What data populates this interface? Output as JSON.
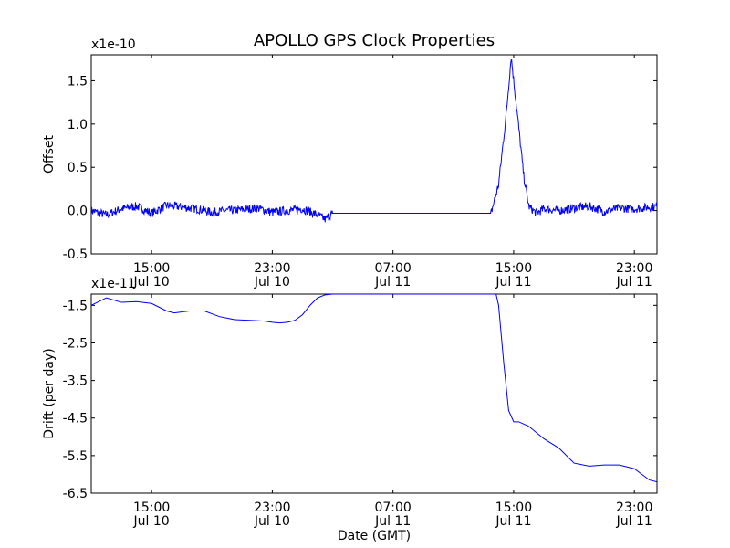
{
  "chart_data": [
    {
      "type": "line",
      "title": "APOLLO GPS Clock Properties",
      "offset_label": "x1e-10",
      "ylabel": "Offset",
      "xlabel": "",
      "ylim": [
        -0.5,
        1.8
      ],
      "yticks": [
        {
          "value": -0.5,
          "label": "-0.5"
        },
        {
          "value": 0.0,
          "label": "0.0"
        },
        {
          "value": 0.5,
          "label": "0.5"
        },
        {
          "value": 1.0,
          "label": "1.0"
        },
        {
          "value": 1.5,
          "label": "1.5"
        }
      ],
      "xlim": [
        "2012-07-10 11:00",
        "2012-07-12 00:30"
      ],
      "xticks": [
        {
          "value": "2012-07-10 15:00",
          "time": "15:00",
          "date": "Jul 10"
        },
        {
          "value": "2012-07-10 23:00",
          "time": "23:00",
          "date": "Jul 10"
        },
        {
          "value": "2012-07-11 07:00",
          "time": "07:00",
          "date": "Jul 11"
        },
        {
          "value": "2012-07-11 15:00",
          "time": "15:00",
          "date": "Jul 11"
        },
        {
          "value": "2012-07-11 23:00",
          "time": "23:00",
          "date": "Jul 11"
        }
      ],
      "series": [
        {
          "color": "#0000ff",
          "x": [
            "2012-07-10 11:00",
            "2012-07-10 12:00",
            "2012-07-10 13:00",
            "2012-07-10 14:00",
            "2012-07-10 15:00",
            "2012-07-10 16:00",
            "2012-07-10 17:00",
            "2012-07-10 18:00",
            "2012-07-10 19:00",
            "2012-07-10 20:00",
            "2012-07-10 21:00",
            "2012-07-10 22:00",
            "2012-07-10 23:00",
            "2012-07-11 00:00",
            "2012-07-11 01:00",
            "2012-07-11 02:00",
            "2012-07-11 02:30",
            "2012-07-11 03:00",
            "2012-07-11 06:00",
            "2012-07-11 10:00",
            "2012-07-11 13:30",
            "2012-07-11 14:00",
            "2012-07-11 14:30",
            "2012-07-11 14:50",
            "2012-07-11 15:15",
            "2012-07-11 15:40",
            "2012-07-11 16:00",
            "2012-07-11 16:30",
            "2012-07-11 17:00",
            "2012-07-11 18:00",
            "2012-07-11 19:00",
            "2012-07-11 20:00",
            "2012-07-11 21:00",
            "2012-07-11 22:00",
            "2012-07-11 23:00",
            "2012-07-12 00:00",
            "2012-07-12 00:30"
          ],
          "y": [
            0.0,
            -0.05,
            0.02,
            0.05,
            -0.03,
            0.06,
            0.04,
            0.02,
            -0.02,
            0.0,
            0.01,
            0.03,
            -0.02,
            0.0,
            0.02,
            -0.05,
            -0.1,
            -0.03,
            -0.03,
            -0.03,
            -0.03,
            0.3,
            1.1,
            1.78,
            1.1,
            0.4,
            0.05,
            -0.03,
            0.02,
            0.0,
            0.03,
            0.05,
            -0.01,
            0.03,
            0.02,
            0.04,
            0.05
          ],
          "noise": 0.05
        }
      ]
    },
    {
      "type": "line",
      "title": "",
      "offset_label": "x1e-11",
      "ylabel": "Drift (per day)",
      "xlabel": "Date (GMT)",
      "ylim": [
        -6.5,
        -1.2
      ],
      "yticks": [
        {
          "value": -6.5,
          "label": "-6.5"
        },
        {
          "value": -5.5,
          "label": "-5.5"
        },
        {
          "value": -4.5,
          "label": "-4.5"
        },
        {
          "value": -3.5,
          "label": "-3.5"
        },
        {
          "value": -2.5,
          "label": "-2.5"
        },
        {
          "value": -1.5,
          "label": "-1.5"
        }
      ],
      "xlim": [
        "2012-07-10 11:00",
        "2012-07-12 00:30"
      ],
      "xticks": [
        {
          "value": "2012-07-10 15:00",
          "time": "15:00",
          "date": "Jul 10"
        },
        {
          "value": "2012-07-10 23:00",
          "time": "23:00",
          "date": "Jul 10"
        },
        {
          "value": "2012-07-11 07:00",
          "time": "07:00",
          "date": "Jul 11"
        },
        {
          "value": "2012-07-11 15:00",
          "time": "15:00",
          "date": "Jul 11"
        },
        {
          "value": "2012-07-11 23:00",
          "time": "23:00",
          "date": "Jul 11"
        }
      ],
      "series": [
        {
          "color": "#0000ff",
          "x": [
            "2012-07-10 11:00",
            "2012-07-10 11:45",
            "2012-07-10 12:00",
            "2012-07-10 13:00",
            "2012-07-10 14:00",
            "2012-07-10 15:00",
            "2012-07-10 16:00",
            "2012-07-10 16:30",
            "2012-07-10 17:30",
            "2012-07-10 18:30",
            "2012-07-10 19:30",
            "2012-07-10 20:30",
            "2012-07-10 21:30",
            "2012-07-10 22:30",
            "2012-07-10 23:00",
            "2012-07-10 23:30",
            "2012-07-11 00:00",
            "2012-07-11 00:30",
            "2012-07-11 01:00",
            "2012-07-11 01:30",
            "2012-07-11 02:00",
            "2012-07-11 02:30",
            "2012-07-11 03:00",
            "2012-07-11 08:00",
            "2012-07-11 13:50",
            "2012-07-11 14:00",
            "2012-07-11 14:20",
            "2012-07-11 14:40",
            "2012-07-11 15:00",
            "2012-07-11 15:20",
            "2012-07-11 16:00",
            "2012-07-11 17:00",
            "2012-07-11 18:00",
            "2012-07-11 19:00",
            "2012-07-11 20:00",
            "2012-07-11 21:00",
            "2012-07-11 22:00",
            "2012-07-11 23:00",
            "2012-07-12 00:00",
            "2012-07-12 00:30"
          ],
          "y": [
            -1.5,
            -1.35,
            -1.3,
            -1.42,
            -1.4,
            -1.45,
            -1.65,
            -1.7,
            -1.65,
            -1.65,
            -1.8,
            -1.88,
            -1.9,
            -1.92,
            -1.95,
            -1.97,
            -1.95,
            -1.9,
            -1.75,
            -1.5,
            -1.3,
            -1.22,
            -1.2,
            -1.2,
            -1.2,
            -1.5,
            -3.0,
            -4.3,
            -4.6,
            -4.6,
            -4.72,
            -5.05,
            -5.3,
            -5.7,
            -5.78,
            -5.75,
            -5.75,
            -5.85,
            -6.15,
            -6.2
          ],
          "noise": 0
        }
      ]
    }
  ]
}
